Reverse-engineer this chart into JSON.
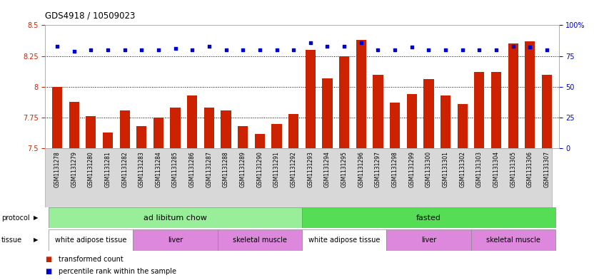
{
  "title": "GDS4918 / 10509023",
  "samples": [
    "GSM1131278",
    "GSM1131279",
    "GSM1131280",
    "GSM1131281",
    "GSM1131282",
    "GSM1131283",
    "GSM1131284",
    "GSM1131285",
    "GSM1131286",
    "GSM1131287",
    "GSM1131288",
    "GSM1131289",
    "GSM1131290",
    "GSM1131291",
    "GSM1131292",
    "GSM1131293",
    "GSM1131294",
    "GSM1131295",
    "GSM1131296",
    "GSM1131297",
    "GSM1131298",
    "GSM1131299",
    "GSM1131300",
    "GSM1131301",
    "GSM1131302",
    "GSM1131303",
    "GSM1131304",
    "GSM1131305",
    "GSM1131306",
    "GSM1131307"
  ],
  "bar_values": [
    8.0,
    7.88,
    7.76,
    7.63,
    7.81,
    7.68,
    7.75,
    7.83,
    7.93,
    7.83,
    7.81,
    7.68,
    7.62,
    7.7,
    7.78,
    8.3,
    8.07,
    8.25,
    8.38,
    8.1,
    7.87,
    7.94,
    8.06,
    7.93,
    7.86,
    8.12,
    8.12,
    8.35,
    8.37,
    8.1
  ],
  "percentile_values": [
    83,
    79,
    80,
    80,
    80,
    80,
    80,
    81,
    80,
    83,
    80,
    80,
    80,
    80,
    80,
    86,
    83,
    83,
    86,
    80,
    80,
    82,
    80,
    80,
    80,
    80,
    80,
    83,
    82,
    80
  ],
  "ylim_left": [
    7.5,
    8.5
  ],
  "ylim_right": [
    0,
    100
  ],
  "yticks_left": [
    7.5,
    7.75,
    8.0,
    8.25,
    8.5
  ],
  "ytick_labels_left": [
    "7.5",
    "7.75",
    "8",
    "8.25",
    "8.5"
  ],
  "yticks_right": [
    0,
    25,
    50,
    75,
    100
  ],
  "ytick_labels_right": [
    "0",
    "25",
    "50",
    "75",
    "100%"
  ],
  "bar_color": "#cc2200",
  "dot_color": "#0000cc",
  "protocol_groups": [
    {
      "label": "ad libitum chow",
      "start": 0,
      "end": 14,
      "color": "#99ee99"
    },
    {
      "label": "fasted",
      "start": 15,
      "end": 29,
      "color": "#55dd55"
    }
  ],
  "tissue_groups": [
    {
      "label": "white adipose tissue",
      "start": 0,
      "end": 4,
      "color": "#ffffff"
    },
    {
      "label": "liver",
      "start": 5,
      "end": 9,
      "color": "#dd88dd"
    },
    {
      "label": "skeletal muscle",
      "start": 10,
      "end": 14,
      "color": "#dd88dd"
    },
    {
      "label": "white adipose tissue",
      "start": 15,
      "end": 19,
      "color": "#ffffff"
    },
    {
      "label": "liver",
      "start": 20,
      "end": 24,
      "color": "#dd88dd"
    },
    {
      "label": "skeletal muscle",
      "start": 25,
      "end": 29,
      "color": "#dd88dd"
    }
  ],
  "dotted_lines": [
    7.75,
    8.0,
    8.25
  ],
  "background_color": "#ffffff",
  "axis_bg": "#ffffff"
}
